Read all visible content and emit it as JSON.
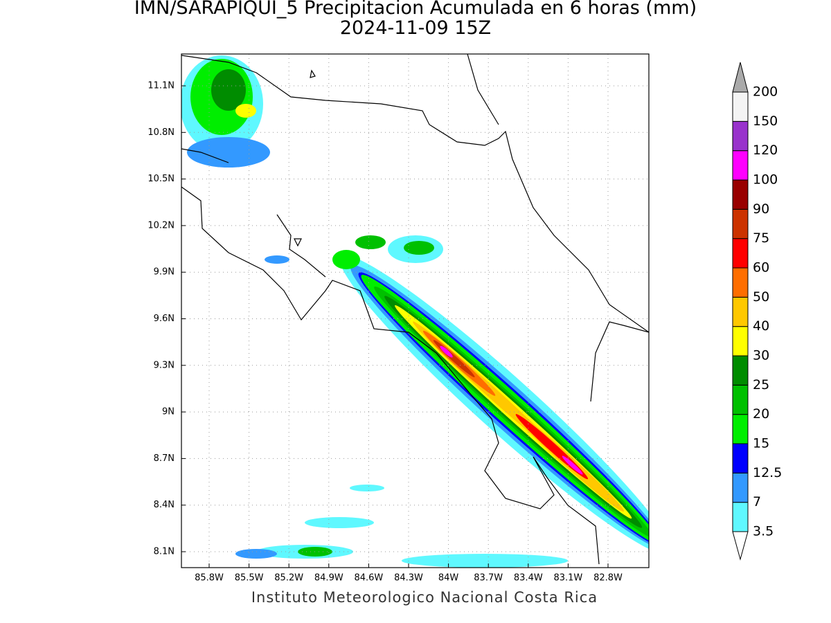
{
  "title": "IMN/SARAPIQUI_5 Precipitacion Acumulada en 6 horas (mm)",
  "subtitle": "2024-11-09 15Z",
  "map": {
    "lat_labels": [
      "11.1N",
      "10.8N",
      "10.5N",
      "10.2N",
      "9.9N",
      "9.6N",
      "9.3N",
      "9N",
      "8.7N",
      "8.4N",
      "8.1N"
    ],
    "lon_labels": [
      "85.8W",
      "85.5W",
      "85.2W",
      "84.9W",
      "84.6W",
      "84.3W",
      "84W",
      "83.7W",
      "83.4W",
      "83.1W",
      "82.8W"
    ]
  },
  "colorbar": {
    "levels": [
      {
        "label": "3.5",
        "color": "#5ff8ff"
      },
      {
        "label": "7",
        "color": "#3399ff"
      },
      {
        "label": "12.5",
        "color": "#0000ff"
      },
      {
        "label": "15",
        "color": "#00ee00"
      },
      {
        "label": "20",
        "color": "#00c000"
      },
      {
        "label": "25",
        "color": "#008c00"
      },
      {
        "label": "30",
        "color": "#ffff00"
      },
      {
        "label": "40",
        "color": "#ffc800"
      },
      {
        "label": "50",
        "color": "#ff6e00"
      },
      {
        "label": "60",
        "color": "#ff0000"
      },
      {
        "label": "75",
        "color": "#cc3300"
      },
      {
        "label": "90",
        "color": "#990000"
      },
      {
        "label": "100",
        "color": "#ff00ff"
      },
      {
        "label": "120",
        "color": "#9933cc"
      },
      {
        "label": "150",
        "color": "#f4f4f4"
      },
      {
        "label": "200",
        "color": "#aaaaaa"
      }
    ]
  },
  "footer": "Instituto Meteorologico Nacional Costa Rica"
}
